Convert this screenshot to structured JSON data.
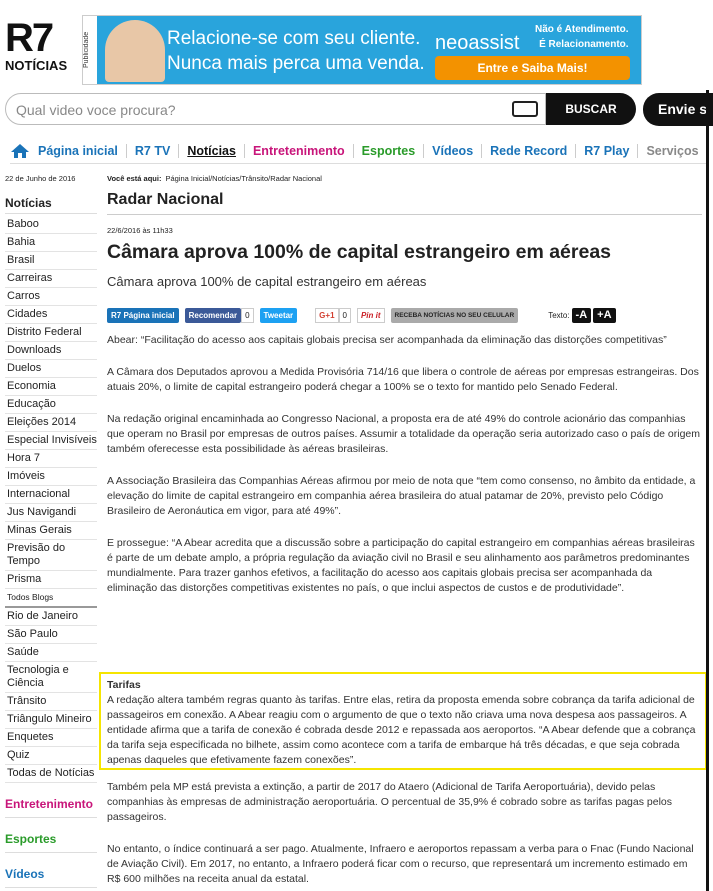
{
  "header": {
    "logo": "R7",
    "logo_sub": "NOTÍCIAS",
    "ad_label": "Publicidade",
    "ad_text": [
      "Relacione-se com seu cliente.",
      "Nunca mais perca uma venda."
    ],
    "ad_brand": "neoassist",
    "ad_tagline": [
      "Não é Atendimento.",
      "É Relacionamento."
    ],
    "ad_button": "Entre e Saiba Mais!"
  },
  "search": {
    "placeholder": "Qual video voce procura?",
    "button": "BUSCAR",
    "extra": "Envie s"
  },
  "nav": [
    "Página inicial",
    "R7 TV",
    "Notícias",
    "Entretenimento",
    "Esportes",
    "Vídeos",
    "Rede Record",
    "R7 Play",
    "Serviços"
  ],
  "sidebar": {
    "date": "22 de Junho de 2016",
    "heading": "Notícias",
    "links": [
      "Baboo",
      "Bahia",
      "Brasil",
      "Carreiras",
      "Carros",
      "Cidades",
      "Distrito Federal",
      "Downloads",
      "Duelos",
      "Economia",
      "Educação",
      "Eleições 2014",
      "Especial Invisíveis",
      "Hora 7",
      "Imóveis",
      "Internacional",
      "Jus Navigandi",
      "Minas Gerais",
      "Previsão do Tempo",
      "Prisma",
      "Todos Blogs",
      "Rio de Janeiro",
      "São Paulo",
      "Saúde",
      "Tecnologia e Ciência",
      "Trânsito",
      "Triângulo Mineiro",
      "Enquetes",
      "Quiz",
      "Todas de Notícias"
    ],
    "sections": [
      "Entretenimento",
      "Esportes",
      "Vídeos"
    ]
  },
  "breadcrumb": {
    "label": "Você está aqui:",
    "path": "Página Inicial/Notícias/Trânsito/Radar Nacional"
  },
  "article": {
    "section": "Radar Nacional",
    "timestamp": "22/6/2016 às 11h33",
    "title": "Câmara aprova 100% de capital estrangeiro em aéreas",
    "subtitle": "Câmara aprova 100% de capital estrangeiro em aéreas",
    "share": {
      "r7": "R7",
      "home": "Página inicial",
      "recommend": "Recomendar",
      "fb_count": 0,
      "tweet": "Tweetar",
      "gplus": "G+1",
      "gplus_count": 0,
      "pin": "Pin it",
      "mobile": "RECEBA NOTÍCIAS NO SEU CELULAR",
      "text_label": "Texto:",
      "smaller": "-A",
      "bigger": "+A"
    },
    "paragraphs": [
      "Abear: “Facilitação do acesso aos capitais globais precisa ser acompanhada da eliminação das distorções competitivas”",
      "A Câmara dos Deputados aprovou a Medida Provisória 714/16 que libera o controle de aéreas por empresas estrangeiras. Dos atuais 20%, o limite de capital estrangeiro poderá chegar a 100% se o texto for mantido pelo Senado Federal.",
      "Na redação original encaminhada ao Congresso Nacional, a proposta era de até 49% do controle acionário das companhias que operam no Brasil por empresas de outros países. Assumir a totalidade da operação seria autorizado caso o país de origem também oferecesse esta possibilidade às aéreas brasileiras.",
      "A Associação Brasileira das Companhias Aéreas afirmou por meio de nota que “tem como consenso, no âmbito da entidade, a elevação do limite de capital estrangeiro em companhia aérea brasileira do atual patamar de 20%, previsto pelo Código Brasileiro de Aeronáutica em vigor, para até 49%”.",
      "E prossegue: “A Abear acredita que a discussão sobre a participação do capital estrangeiro em companhias aéreas brasileiras é parte de um debate amplo, a própria regulação da aviação civil no Brasil e seu alinhamento aos parâmetros predominantes mundialmente. Para trazer ganhos efetivos, a facilitação do acesso aos capitais globais precisa ser acompanhada da eliminação das distorções competitivas existentes no país, o que inclui aspectos de custos e de produtividade”."
    ],
    "box": {
      "title": "Tarifas",
      "text": "A redação altera também regras quanto às tarifas. Entre elas, retira da proposta emenda sobre cobrança da tarifa adicional de passageiros em conexão. A Abear reagiu com o argumento de que o texto não criava uma nova despesa aos passageiros. A entidade afirma que a tarifa de conexão é cobrada desde 2012 e repassada aos aeroportos. “A Abear defende que a cobrança da tarifa seja especificada no bilhete, assim como acontece com a tarifa de embarque há três décadas, e que seja cobrada apenas daqueles que efetivamente fazem conexões”."
    },
    "paragraphs_after": [
      "Também pela MP está prevista a extinção, a partir de 2017 do Ataero (Adicional de Tarifa Aeroportuária), devido pelas companhias às empresas de administração aeroportuária. O percentual de 35,9% é cobrado sobre as tarifas pagas pelos passageiros.",
      "No entanto, o índice continuará a ser pago. Atualmente, Infraero e aeroportos repassam a verba para o Fnac (Fundo Nacional de Aviação Civil). Em 2017, no entanto, a Infraero poderá ficar com o recurso, que representará um incremento estimado em R$ 600 milhões na receita anual da estatal."
    ]
  }
}
